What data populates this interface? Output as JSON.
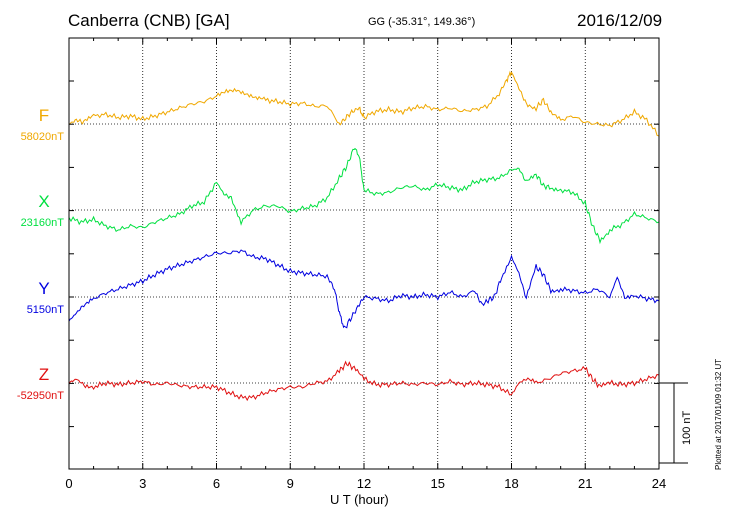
{
  "header": {
    "station": "Canberra (CNB)  [GA]",
    "coords": "GG (-35.31°, 149.36°)",
    "date": "2016/12/09"
  },
  "footer": {
    "plotted": "Plotted at 2017/01/09 01:32 UT",
    "scale_label": "100 nT"
  },
  "chart_data": {
    "type": "line",
    "xlabel": "U T (hour)",
    "xlim": [
      0,
      24
    ],
    "xticks": [
      0,
      3,
      6,
      9,
      12,
      15,
      18,
      21,
      24
    ],
    "scale_nT": 100,
    "grid": true,
    "series": [
      {
        "name": "F",
        "baseline_label": "58020nT",
        "baseline": 58020,
        "color": "#f0a800",
        "x": [
          0,
          0.3,
          0.6,
          1,
          1.5,
          2,
          2.5,
          3,
          3.5,
          4,
          4.5,
          5,
          5.5,
          6,
          6.4,
          6.8,
          7.2,
          7.6,
          8,
          8.5,
          9,
          9.5,
          10,
          10.5,
          11,
          11.2,
          11.5,
          11.8,
          12,
          12.5,
          13,
          13.5,
          14,
          14.5,
          15,
          15.5,
          16,
          16.5,
          17,
          17.5,
          17.8,
          18,
          18.3,
          18.6,
          19,
          19.3,
          19.6,
          20,
          20.5,
          21,
          21.5,
          22,
          22.5,
          23,
          23.5,
          24
        ],
        "y": [
          58020,
          58025,
          58022,
          58030,
          58032,
          58028,
          58030,
          58026,
          58030,
          58035,
          58040,
          58045,
          58048,
          58055,
          58062,
          58064,
          58058,
          58052,
          58050,
          58048,
          58045,
          58046,
          58042,
          58043,
          58020,
          58026,
          58035,
          58040,
          58028,
          58036,
          58038,
          58035,
          58040,
          58042,
          58038,
          58040,
          58036,
          58038,
          58042,
          58058,
          58075,
          58085,
          58065,
          58045,
          58040,
          58050,
          58035,
          58025,
          58030,
          58022,
          58020,
          58018,
          58025,
          58035,
          58025,
          58005
        ]
      },
      {
        "name": "X",
        "baseline_label": "23160nT",
        "baseline": 23160,
        "color": "#00e040",
        "x": [
          0,
          0.5,
          1,
          1.5,
          2,
          2.5,
          3,
          3.5,
          4,
          4.5,
          5,
          5.5,
          6,
          6.3,
          6.6,
          7,
          7.5,
          8,
          8.5,
          9,
          9.5,
          10,
          10.5,
          11,
          11.3,
          11.6,
          11.8,
          12,
          12.5,
          13,
          13.5,
          14,
          14.5,
          15,
          15.5,
          16,
          16.5,
          17,
          17.5,
          18,
          18.3,
          18.6,
          19,
          19.3,
          19.6,
          20,
          20.5,
          21,
          21.3,
          21.6,
          22,
          22.5,
          23,
          23.5,
          24
        ],
        "y": [
          23150,
          23145,
          23148,
          23140,
          23135,
          23140,
          23138,
          23145,
          23150,
          23155,
          23165,
          23170,
          23195,
          23180,
          23175,
          23145,
          23160,
          23165,
          23165,
          23158,
          23162,
          23165,
          23175,
          23200,
          23215,
          23238,
          23228,
          23185,
          23180,
          23182,
          23188,
          23190,
          23185,
          23192,
          23188,
          23185,
          23195,
          23198,
          23200,
          23210,
          23212,
          23195,
          23205,
          23190,
          23188,
          23185,
          23182,
          23168,
          23140,
          23122,
          23135,
          23142,
          23155,
          23150,
          23145
        ]
      },
      {
        "name": "Y",
        "baseline_label": "5150nT",
        "baseline": 5150,
        "color": "#0000e0",
        "x": [
          0,
          0.3,
          0.6,
          1,
          1.5,
          2,
          2.5,
          3,
          3.5,
          4,
          4.5,
          5,
          5.5,
          6,
          6.5,
          7,
          7.5,
          8,
          8.5,
          9,
          9.5,
          10,
          10.5,
          10.8,
          11,
          11.2,
          11.5,
          11.8,
          12,
          12.5,
          13,
          13.5,
          14,
          14.5,
          15,
          15.5,
          16,
          16.5,
          16.8,
          17,
          17.3,
          17.6,
          18,
          18.3,
          18.6,
          19,
          19.3,
          19.6,
          20,
          20.5,
          21,
          21.5,
          22,
          22.3,
          22.6,
          23,
          23.5,
          24
        ],
        "y": [
          5120,
          5130,
          5140,
          5148,
          5155,
          5160,
          5165,
          5170,
          5178,
          5185,
          5190,
          5195,
          5200,
          5205,
          5205,
          5208,
          5200,
          5198,
          5190,
          5182,
          5180,
          5178,
          5176,
          5160,
          5130,
          5110,
          5125,
          5140,
          5150,
          5148,
          5145,
          5152,
          5150,
          5153,
          5150,
          5156,
          5150,
          5158,
          5140,
          5145,
          5150,
          5175,
          5200,
          5180,
          5148,
          5188,
          5178,
          5158,
          5160,
          5158,
          5155,
          5160,
          5150,
          5175,
          5150,
          5152,
          5148,
          5145
        ]
      },
      {
        "name": "Z",
        "baseline_label": "-52950nT",
        "baseline": -52950,
        "color": "#e01010",
        "x": [
          0,
          0.3,
          0.6,
          1,
          1.5,
          2,
          2.5,
          3,
          3.5,
          4,
          4.5,
          5,
          5.5,
          6,
          6.5,
          7,
          7.5,
          8,
          8.5,
          9,
          9.5,
          10,
          10.5,
          11,
          11.3,
          11.6,
          12,
          12.5,
          13,
          13.5,
          14,
          14.5,
          15,
          15.5,
          16,
          16.5,
          17,
          17.5,
          18,
          18.3,
          18.6,
          19,
          19.5,
          20,
          20.5,
          21,
          21.3,
          21.6,
          22,
          22.5,
          23,
          23.5,
          24
        ],
        "y": [
          -52950,
          -52945,
          -52952,
          -52955,
          -52950,
          -52952,
          -52950,
          -52948,
          -52952,
          -52950,
          -52953,
          -52955,
          -52955,
          -52955,
          -52962,
          -52968,
          -52968,
          -52962,
          -52958,
          -52955,
          -52955,
          -52950,
          -52948,
          -52935,
          -52925,
          -52932,
          -52945,
          -52952,
          -52952,
          -52950,
          -52952,
          -52950,
          -52952,
          -52948,
          -52952,
          -52950,
          -52952,
          -52955,
          -52965,
          -52950,
          -52945,
          -52950,
          -52945,
          -52938,
          -52935,
          -52932,
          -52945,
          -52955,
          -52950,
          -52952,
          -52950,
          -52945,
          -52940
        ]
      }
    ]
  }
}
